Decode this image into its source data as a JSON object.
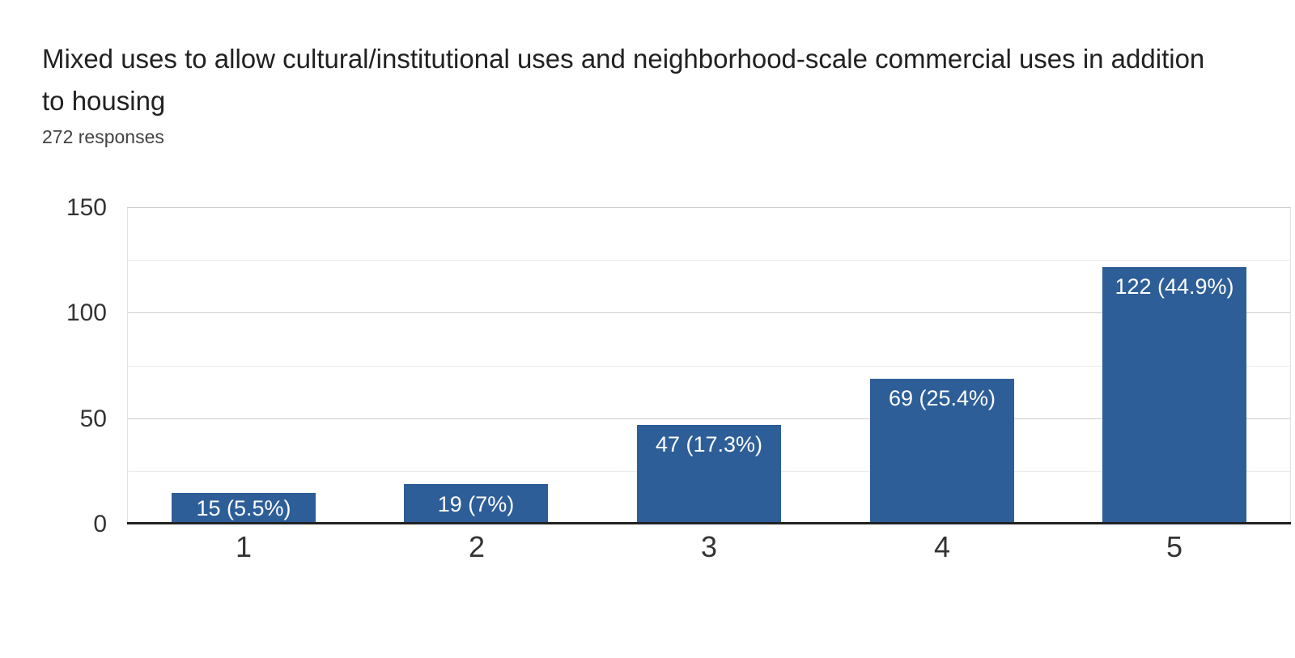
{
  "header": {
    "title": "Mixed uses to allow cultural/institutional uses and neighborhood-scale commercial uses in addition to housing",
    "responses_label": "272 responses"
  },
  "chart_data": {
    "type": "bar",
    "title": "Mixed uses to allow cultural/institutional uses and neighborhood-scale commercial uses in addition to housing",
    "subtitle": "272 responses",
    "categories": [
      "1",
      "2",
      "3",
      "4",
      "5"
    ],
    "values": [
      15,
      19,
      47,
      69,
      122
    ],
    "bar_labels": [
      "15 (5.5%)",
      "19 (7%)",
      "47 (17.3%)",
      "69 (25.4%)",
      "122 (44.9%)"
    ],
    "percentages": [
      5.5,
      7,
      17.3,
      25.4,
      44.9
    ],
    "xlabel": "",
    "ylabel": "",
    "ylim": [
      0,
      150
    ],
    "yticks": [
      0,
      50,
      100,
      150
    ],
    "minor_gridlines": [
      25,
      75,
      125
    ],
    "grid": true,
    "legend": "none",
    "colors": {
      "bar": "#2d5e98",
      "bar_label": "#ffffff",
      "axis_label": "#333333",
      "major_grid": "#cccccc",
      "minor_grid": "#ebebeb",
      "baseline": "#222222",
      "title": "#212121"
    }
  }
}
